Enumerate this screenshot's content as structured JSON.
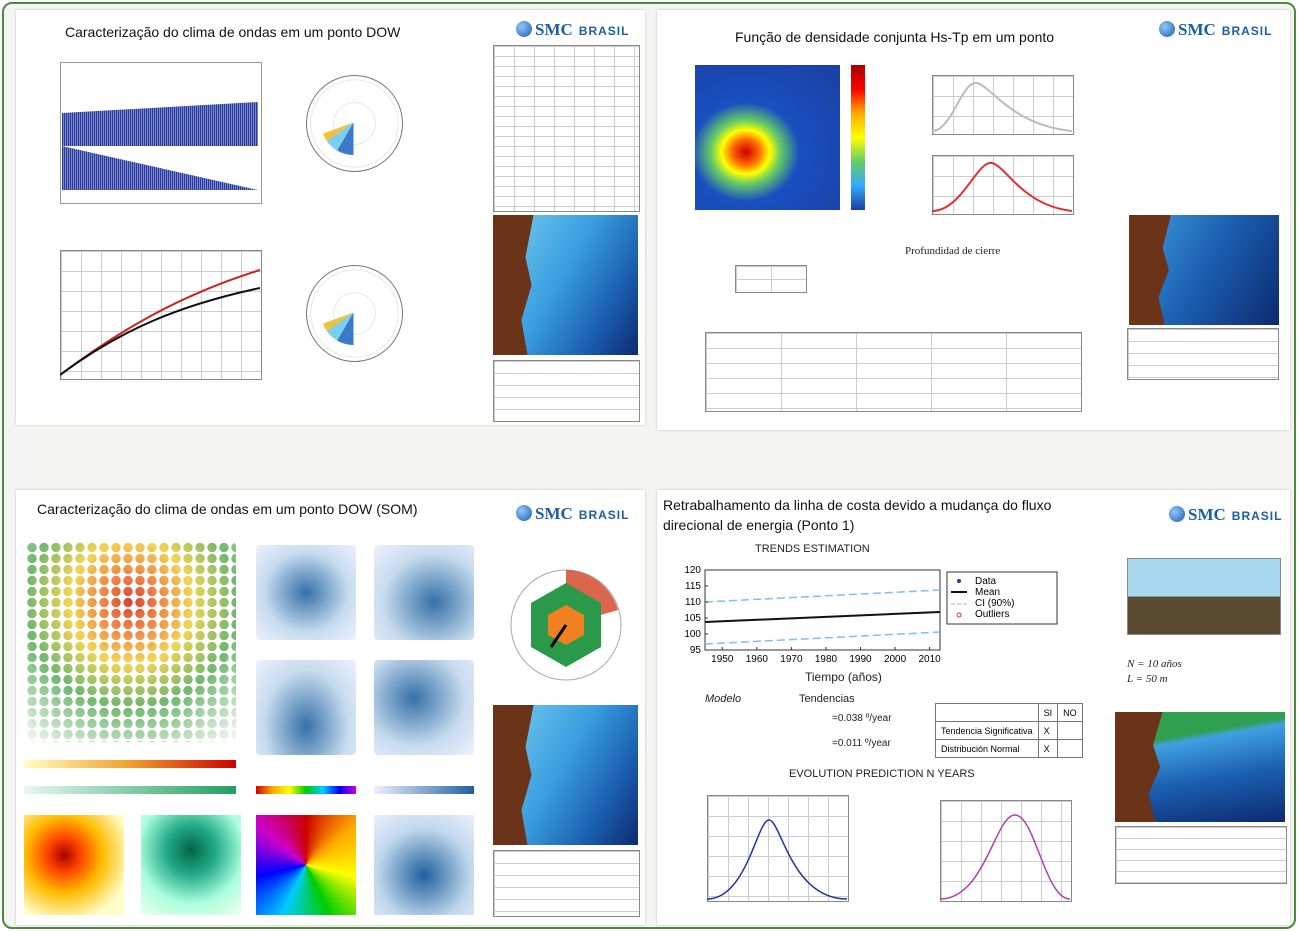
{
  "panels": [
    {
      "title": "Caracterização do clima de ondas em um ponto DOW"
    },
    {
      "title": "Função de densidade conjunta Hs-Tp em um ponto"
    },
    {
      "title": "Caracterização do clima de ondas em um ponto DOW (SOM)"
    },
    {
      "title": "Retrabalhamento da linha de costa devido a mudança  do fluxo direcional de energia (Ponto 1)"
    }
  ],
  "logo": {
    "mark": "SMC",
    "suffix": "BRASIL",
    "country": "BRASIL"
  },
  "density": {
    "closure": "Profundidad de cierre"
  },
  "trends": {
    "title": "TRENDS ESTIMATION",
    "legend": [
      "Data",
      "Mean",
      "CI (90%)",
      "Outliers"
    ],
    "x_label": "Tiempo (años)",
    "xlim": [
      1945,
      2013
    ],
    "ylim": [
      95,
      120
    ],
    "xticks": [
      1950,
      1960,
      1970,
      1980,
      1990,
      2000,
      2010
    ],
    "yticks": [
      95,
      100,
      105,
      110,
      115,
      120
    ]
  },
  "model": {
    "modelo": "Modelo",
    "tendencias": "Tendencias",
    "rate1": "=0.038 º/year",
    "rate2": "=0.011 º/year",
    "evolution": "EVOLUTION PREDICTION N YEARS"
  },
  "tests": {
    "header": [
      "SI",
      "NO"
    ],
    "rows": [
      {
        "label": "Tendencia Significativa",
        "si": "X"
      },
      {
        "label": "Distribución Normal",
        "si": "X"
      }
    ]
  },
  "shoreline": {
    "n": "N = 10 años",
    "l": "L = 50 m"
  }
}
